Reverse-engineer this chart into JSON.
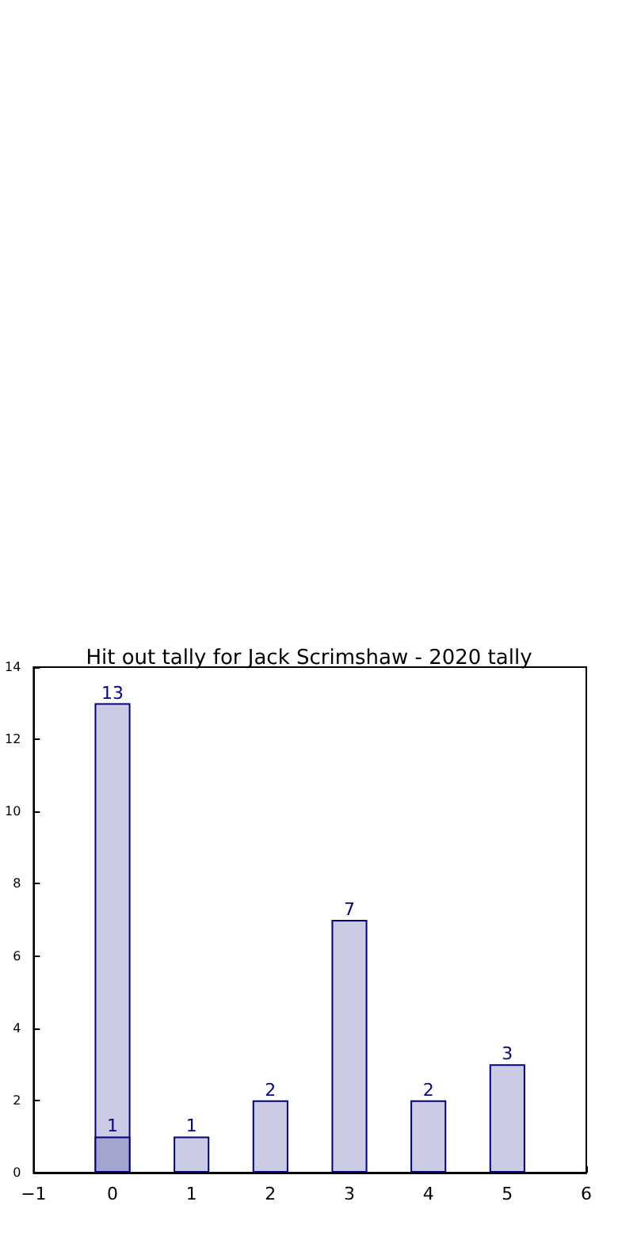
{
  "chart_data": {
    "type": "bar",
    "title": "Hit out tally for Jack Scrimshaw - 2020 tally",
    "x": [
      0,
      1,
      2,
      3,
      4,
      5
    ],
    "series": [
      {
        "color": "#cbcce3",
        "values": [
          13,
          1,
          2,
          7,
          2,
          3
        ]
      },
      {
        "color": "#a3a4d0",
        "x": [
          0
        ],
        "values": [
          1
        ]
      }
    ],
    "xlim": [
      -1,
      6
    ],
    "xticks": [
      -1,
      0,
      1,
      2,
      3,
      4,
      5,
      6
    ],
    "ylim": [
      0,
      14
    ],
    "yticks": [
      0,
      2,
      4,
      6,
      8,
      10,
      12,
      14
    ],
    "data_labels": true,
    "grid": false
  }
}
